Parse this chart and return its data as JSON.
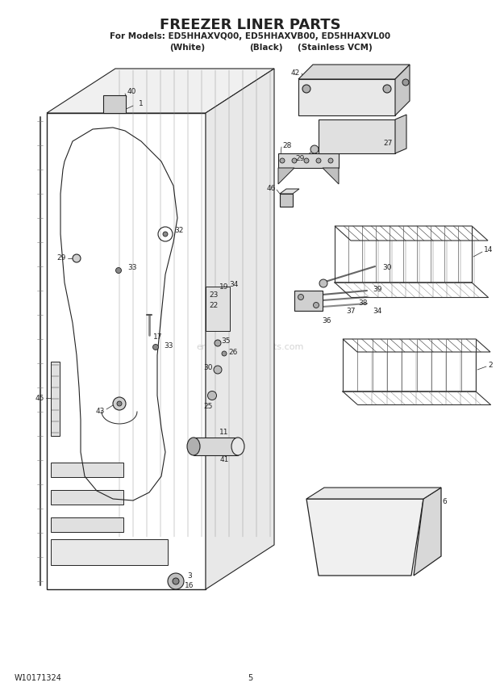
{
  "title": "FREEZER LINER PARTS",
  "subtitle_line1": "For Models: ED5HHAXVQ00, ED5HHAXVB00, ED5HHAXVL00",
  "subtitle_line2_col1": "(White)",
  "subtitle_line2_col2": "(Black)",
  "subtitle_line2_col3": "(Stainless VCM)",
  "footer_left": "W10171324",
  "footer_center": "5",
  "bg_color": "#ffffff",
  "line_color": "#222222",
  "fig_width": 6.2,
  "fig_height": 8.56,
  "dpi": 100,
  "watermark": "ereplacementparts.com"
}
